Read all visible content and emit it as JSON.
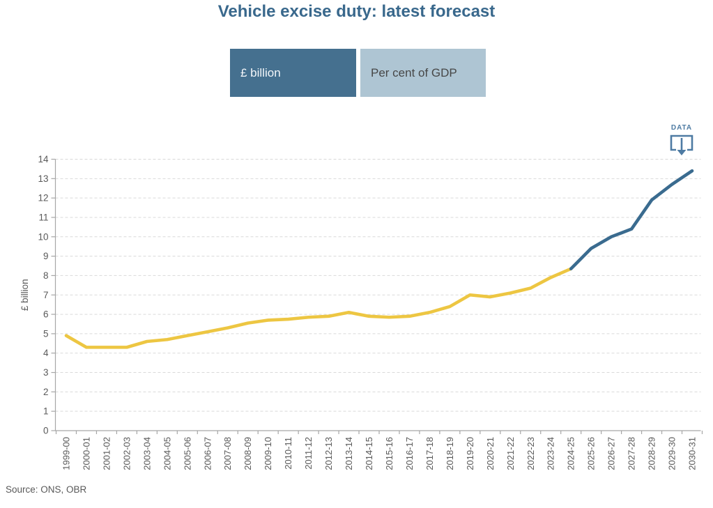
{
  "title": "Vehicle excise duty: latest forecast",
  "tabs": [
    {
      "label": "£ billion",
      "selected": true
    },
    {
      "label": "Per cent of GDP",
      "selected": false
    }
  ],
  "data_button": {
    "label": "DATA"
  },
  "source": "Source: ONS, OBR",
  "colors": {
    "title": "#39688C",
    "tab_selected_bg": "#45708F",
    "tab_selected_text": "#F4F7FA",
    "tab_unselected_bg": "#AEC5D3",
    "tab_unselected_text": "#474747",
    "outturn_line": "#EDC642",
    "forecast_line": "#3A6B8F",
    "axis": "#A6A6A6",
    "gridline": "#D9D9D9",
    "tick_label": "#595959",
    "download_icon": "#4E7BA3"
  },
  "chart_data": {
    "type": "line",
    "title": "Vehicle excise duty: latest forecast",
    "xlabel": "",
    "ylabel": "£ billion",
    "ylim": [
      0,
      14
    ],
    "ytick_interval": 1,
    "grid": "horizontal-dashed",
    "legend_position": "none",
    "categories": [
      "1999-00",
      "2000-01",
      "2001-02",
      "2002-03",
      "2003-04",
      "2004-05",
      "2005-06",
      "2006-07",
      "2007-08",
      "2008-09",
      "2009-10",
      "2010-11",
      "2011-12",
      "2012-13",
      "2013-14",
      "2014-15",
      "2015-16",
      "2016-17",
      "2017-18",
      "2018-19",
      "2019-20",
      "2020-21",
      "2021-22",
      "2022-23",
      "2023-24",
      "2024-25",
      "2025-26",
      "2026-27",
      "2027-28",
      "2028-29",
      "2029-30",
      "2030-31"
    ],
    "series": [
      {
        "name": "outturn",
        "color": "#EDC642",
        "start_index": 0,
        "values": [
          4.9,
          4.3,
          4.3,
          4.3,
          4.6,
          4.7,
          4.9,
          5.1,
          5.3,
          5.55,
          5.7,
          5.75,
          5.85,
          5.9,
          6.1,
          5.9,
          5.85,
          5.9,
          6.1,
          6.4,
          7.0,
          6.9,
          7.1,
          7.35,
          7.9,
          8.35
        ]
      },
      {
        "name": "forecast",
        "color": "#3A6B8F",
        "start_index": 25,
        "values": [
          8.35,
          9.4,
          10.0,
          10.4,
          11.9,
          12.7,
          13.4
        ]
      }
    ]
  }
}
